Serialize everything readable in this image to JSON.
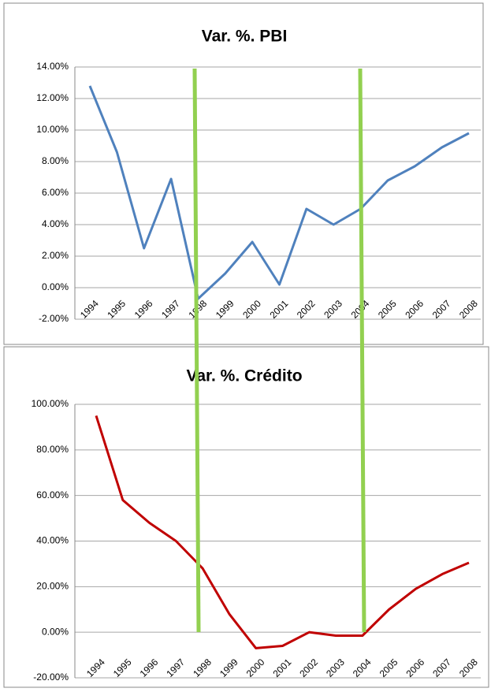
{
  "chart_data": [
    {
      "type": "line",
      "title": "Var. %. PBI",
      "categories": [
        "1994",
        "1995",
        "1996",
        "1997",
        "1998",
        "1999",
        "2000",
        "2001",
        "2002",
        "2003",
        "2004",
        "2005",
        "2006",
        "2007",
        "2008"
      ],
      "series": [
        {
          "name": "Var. %. PBI",
          "color": "#4f81bd",
          "values": [
            12.8,
            8.6,
            2.5,
            6.9,
            -0.7,
            0.9,
            2.9,
            0.2,
            5.0,
            4.0,
            5.0,
            6.8,
            7.7,
            8.9,
            9.8
          ]
        }
      ],
      "ylim": [
        -2,
        14
      ],
      "yticks": [
        {
          "value": -2,
          "label": "-2.00%"
        },
        {
          "value": 0,
          "label": "0.00%"
        },
        {
          "value": 2,
          "label": "2.00%"
        },
        {
          "value": 4,
          "label": "4.00%"
        },
        {
          "value": 6,
          "label": "6.00%"
        },
        {
          "value": 8,
          "label": "8.00%"
        },
        {
          "value": 10,
          "label": "10.00%"
        },
        {
          "value": 12,
          "label": "12.00%"
        },
        {
          "value": 14,
          "label": "14.00%"
        }
      ],
      "grid": true
    },
    {
      "type": "line",
      "title": "Var. %. Crédito",
      "categories": [
        "1994",
        "1995",
        "1996",
        "1997",
        "1998",
        "1999",
        "2000",
        "2001",
        "2002",
        "2003",
        "2004",
        "2005",
        "2006",
        "2007",
        "2008"
      ],
      "series": [
        {
          "name": "Var. %. Crédito",
          "color": "#c00000",
          "values": [
            95,
            58,
            48,
            40,
            28,
            8,
            -7,
            -6,
            0,
            -1.5,
            -1.5,
            10,
            19,
            25.5,
            30.5
          ]
        }
      ],
      "ylim": [
        -20,
        100
      ],
      "yticks": [
        {
          "value": -20,
          "label": "-20.00%"
        },
        {
          "value": 0,
          "label": "0.00%"
        },
        {
          "value": 20,
          "label": "20.00%"
        },
        {
          "value": 40,
          "label": "40.00%"
        },
        {
          "value": 60,
          "label": "60.00%"
        },
        {
          "value": 80,
          "label": "80.00%"
        },
        {
          "value": 100,
          "label": "100.00%"
        }
      ],
      "grid": true
    }
  ]
}
